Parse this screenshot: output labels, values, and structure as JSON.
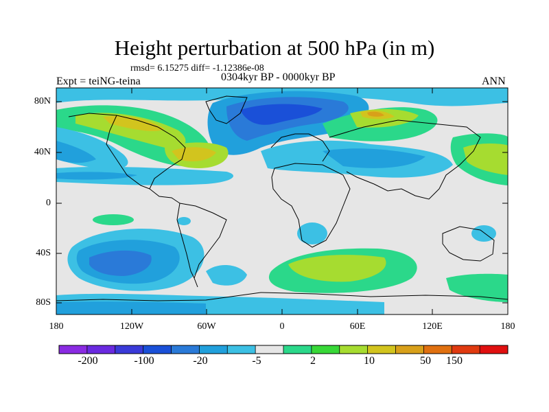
{
  "title": "Height perturbation at 500 hPa (in m)",
  "stats": "rmsd= 6.15275 diff= -1.12386e-08",
  "experiment": "Expt = teiNG-teina",
  "period": "0304kyr BP - 0000kyr BP",
  "season": "ANN",
  "lat_labels": [
    "80N",
    "40N",
    "0",
    "40S",
    "80S"
  ],
  "lon_labels": [
    "180",
    "120W",
    "60W",
    "0",
    "60E",
    "120E",
    "180"
  ],
  "colorbar": {
    "colors": [
      "#8a2be2",
      "#6a2ae0",
      "#3a3ad8",
      "#1a50d8",
      "#2a7ad8",
      "#21a0dc",
      "#3cc0e4",
      "#e6e6e6",
      "#2bd88a",
      "#38d838",
      "#a6dc30",
      "#d2c41e",
      "#d8a01a",
      "#e07010",
      "#e03a10",
      "#e01010"
    ],
    "tick_labels": [
      "-200",
      "-100",
      "-20",
      "-5",
      "2",
      "10",
      "50",
      "150"
    ]
  },
  "colors": {
    "ocean_neutral": "#e6e6e6",
    "coastline": "#000000"
  }
}
